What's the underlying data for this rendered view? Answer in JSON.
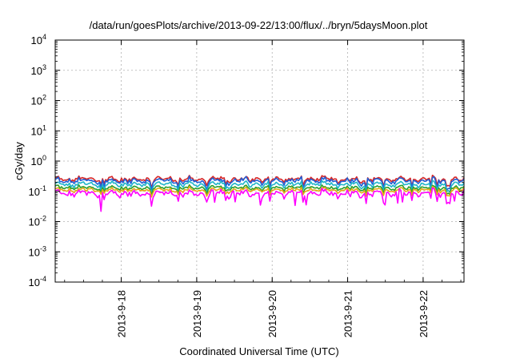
{
  "chart_data": {
    "type": "line",
    "title": "/data/run/goesPlots/archive/2013-09-22/13:00/flux/../bryn/5daysMoon.plot",
    "xlabel": "Coordinated Universal Time (UTC)",
    "ylabel": "cGy/day",
    "y_scale": "log",
    "ylim": [
      0.0001,
      10000
    ],
    "y_ticks": [
      {
        "base": "10",
        "exp": "-4",
        "value": 0.0001
      },
      {
        "base": "10",
        "exp": "-3",
        "value": 0.001
      },
      {
        "base": "10",
        "exp": "-2",
        "value": 0.01
      },
      {
        "base": "10",
        "exp": "-1",
        "value": 0.1
      },
      {
        "base": "10",
        "exp": "0",
        "value": 1
      },
      {
        "base": "10",
        "exp": "1",
        "value": 10
      },
      {
        "base": "10",
        "exp": "2",
        "value": 100
      },
      {
        "base": "10",
        "exp": "3",
        "value": 1000
      },
      {
        "base": "10",
        "exp": "4",
        "value": 10000
      }
    ],
    "xlim": [
      "2013-09-17T03:00",
      "2013-09-22T13:00"
    ],
    "x_ticks": [
      {
        "label": "2013-9-18",
        "date": "2013-09-18T00:00"
      },
      {
        "label": "2013-9-19",
        "date": "2013-09-19T00:00"
      },
      {
        "label": "2013-9-20",
        "date": "2013-09-20T00:00"
      },
      {
        "label": "2013-9-21",
        "date": "2013-09-21T00:00"
      },
      {
        "label": "2013-9-22",
        "date": "2013-09-22T00:00"
      }
    ],
    "grid": true,
    "legend": "none",
    "series": [
      {
        "color": "#d62728",
        "level": 0.25,
        "spread": 0.12
      },
      {
        "color": "#1f5fd6",
        "level": 0.22,
        "spread": 0.14
      },
      {
        "color": "#1fb5c9",
        "level": 0.17,
        "spread": 0.12
      },
      {
        "color": "#2ca02c",
        "level": 0.13,
        "spread": 0.1
      },
      {
        "color": "#e6a817",
        "level": 0.11,
        "spread": 0.1
      },
      {
        "color": "#ff00ff",
        "level": 0.085,
        "spread": 0.16
      }
    ]
  }
}
